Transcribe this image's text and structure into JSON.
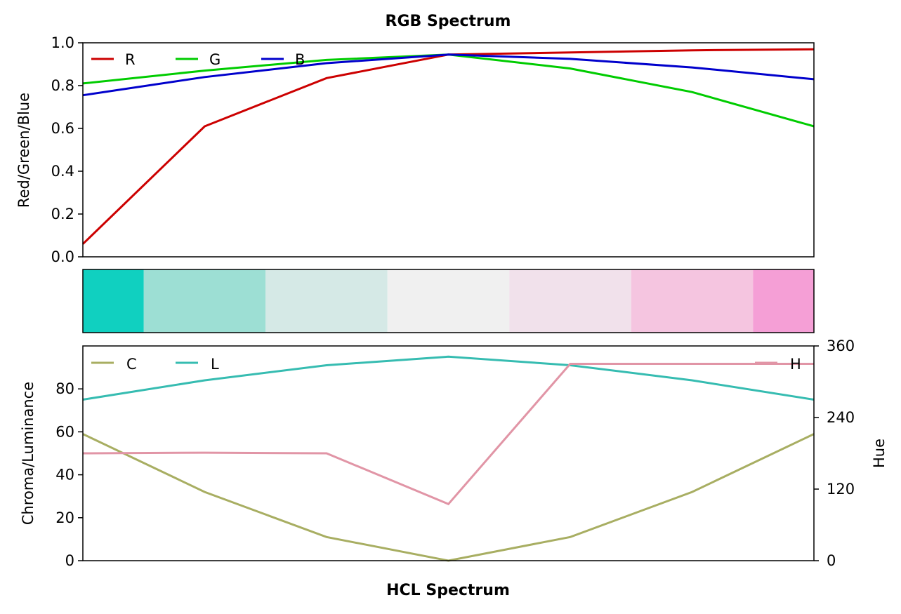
{
  "chart_data": [
    {
      "type": "line",
      "title": "RGB Spectrum",
      "ylabel": "Red/Green/Blue",
      "x": [
        0,
        1,
        2,
        3,
        4,
        5,
        6
      ],
      "ylim": [
        0,
        1
      ],
      "yticks": [
        "0.0",
        "0.2",
        "0.4",
        "0.6",
        "0.8",
        "1.0"
      ],
      "legend_position": "upper-left",
      "series": [
        {
          "name": "R",
          "color": "#cc0000",
          "values": [
            0.06,
            0.61,
            0.835,
            0.945,
            0.955,
            0.965,
            0.97
          ]
        },
        {
          "name": "G",
          "color": "#00cc00",
          "values": [
            0.81,
            0.87,
            0.92,
            0.945,
            0.88,
            0.77,
            0.61
          ]
        },
        {
          "name": "B",
          "color": "#0000cc",
          "values": [
            0.755,
            0.84,
            0.905,
            0.945,
            0.925,
            0.885,
            0.83
          ]
        }
      ]
    },
    {
      "type": "heatmap",
      "swatches": [
        "#10d0c0",
        "#9ddfd4",
        "#d5e9e6",
        "#f0f0f0",
        "#f1e1eb",
        "#f5c5e0",
        "#f59fd6"
      ]
    },
    {
      "type": "line",
      "xlabel": "HCL Spectrum",
      "ylabel": "Chroma/Luminance",
      "y2label": "Hue",
      "x": [
        0,
        1,
        2,
        3,
        4,
        5,
        6
      ],
      "ylim": [
        0,
        100
      ],
      "yticks": [
        "0",
        "20",
        "40",
        "60",
        "80"
      ],
      "y2lim": [
        0,
        360
      ],
      "y2ticks": [
        "0",
        "120",
        "240",
        "360"
      ],
      "series": [
        {
          "name": "C",
          "color": "#a8ae62",
          "axis": "left",
          "values": [
            59,
            32,
            11,
            0,
            11,
            32,
            59
          ]
        },
        {
          "name": "L",
          "color": "#36bcb1",
          "axis": "left",
          "values": [
            75,
            84,
            91,
            95,
            91,
            84,
            75
          ]
        },
        {
          "name": "H",
          "color": "#e195a6",
          "axis": "right",
          "values": [
            180,
            181,
            180,
            95,
            330,
            330,
            330
          ]
        }
      ]
    }
  ]
}
